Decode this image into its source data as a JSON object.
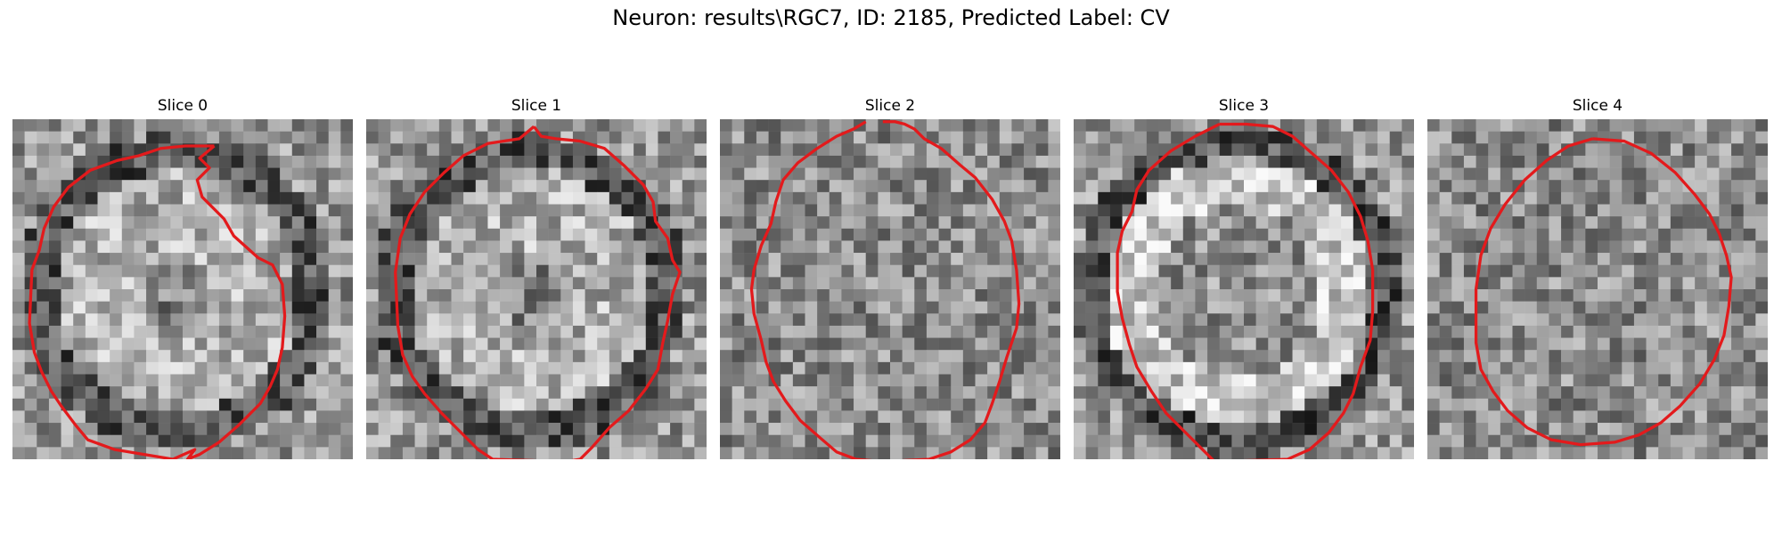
{
  "figure": {
    "title": "Neuron: results\\RGC7, ID: 2185, Predicted Label: CV",
    "outline_color": "#e31a1c",
    "colormap": "gray",
    "grid_size": 28,
    "panels": [
      {
        "title": "Slice 0",
        "pattern": "ring",
        "seed": 11,
        "outline": [
          [
            16.6,
            2.2
          ],
          [
            15.4,
            3.2
          ],
          [
            16.2,
            4.0
          ],
          [
            15.2,
            5.0
          ],
          [
            15.6,
            6.4
          ],
          [
            17.4,
            8.2
          ],
          [
            18.2,
            9.6
          ],
          [
            20.2,
            11.4
          ],
          [
            21.4,
            12.0
          ],
          [
            22.2,
            13.6
          ],
          [
            22.4,
            16.2
          ],
          [
            22.2,
            18.8
          ],
          [
            21.8,
            20.6
          ],
          [
            21.2,
            22.0
          ],
          [
            20.4,
            23.4
          ],
          [
            18.6,
            25.2
          ],
          [
            17.0,
            26.6
          ],
          [
            15.4,
            27.6
          ],
          [
            14.4,
            28.0
          ],
          [
            15.0,
            27.2
          ],
          [
            13.2,
            28.0
          ],
          [
            8.4,
            27.2
          ],
          [
            6.2,
            26.4
          ],
          [
            5.2,
            25.2
          ],
          [
            4.0,
            23.6
          ],
          [
            3.2,
            22.4
          ],
          [
            2.4,
            20.8
          ],
          [
            1.8,
            19.2
          ],
          [
            1.4,
            16.8
          ],
          [
            1.6,
            12.4
          ],
          [
            2.2,
            10.8
          ],
          [
            2.6,
            9.0
          ],
          [
            3.4,
            7.2
          ],
          [
            4.6,
            5.6
          ],
          [
            6.4,
            4.2
          ],
          [
            8.6,
            3.4
          ],
          [
            10.4,
            3.0
          ],
          [
            12.2,
            2.4
          ],
          [
            14.2,
            2.2
          ],
          [
            16.6,
            2.2
          ]
        ]
      },
      {
        "title": "Slice 1",
        "pattern": "ring",
        "seed": 23,
        "outline": [
          [
            13.8,
            0.6
          ],
          [
            14.4,
            1.4
          ],
          [
            15.6,
            1.6
          ],
          [
            17.6,
            1.8
          ],
          [
            19.6,
            2.4
          ],
          [
            21.2,
            3.8
          ],
          [
            22.8,
            5.4
          ],
          [
            23.6,
            6.8
          ],
          [
            23.8,
            8.4
          ],
          [
            24.8,
            9.8
          ],
          [
            25.2,
            11.6
          ],
          [
            25.8,
            12.6
          ],
          [
            25.2,
            14.4
          ],
          [
            24.8,
            16.6
          ],
          [
            24.4,
            18.4
          ],
          [
            24.0,
            20.6
          ],
          [
            23.0,
            22.2
          ],
          [
            21.6,
            24.0
          ],
          [
            20.0,
            25.4
          ],
          [
            18.6,
            27.0
          ],
          [
            17.6,
            28.0
          ],
          [
            16.4,
            28.2
          ],
          [
            10.4,
            28.0
          ],
          [
            9.2,
            27.2
          ],
          [
            7.6,
            25.6
          ],
          [
            6.2,
            24.2
          ],
          [
            4.8,
            22.6
          ],
          [
            3.8,
            21.2
          ],
          [
            3.0,
            19.4
          ],
          [
            2.6,
            17.0
          ],
          [
            2.4,
            12.6
          ],
          [
            2.8,
            9.8
          ],
          [
            3.6,
            7.8
          ],
          [
            4.8,
            6.0
          ],
          [
            6.4,
            4.4
          ],
          [
            8.0,
            3.0
          ],
          [
            10.0,
            2.0
          ],
          [
            12.6,
            1.6
          ],
          [
            13.8,
            0.6
          ]
        ]
      },
      {
        "title": "Slice 2",
        "pattern": "noise",
        "seed": 37,
        "outline": [
          [
            12.0,
            0.2
          ],
          [
            11.0,
            0.8
          ],
          [
            9.6,
            1.4
          ],
          [
            8.0,
            2.4
          ],
          [
            6.4,
            3.6
          ],
          [
            5.2,
            5.0
          ],
          [
            4.6,
            6.8
          ],
          [
            4.2,
            8.6
          ],
          [
            3.4,
            10.4
          ],
          [
            2.8,
            12.4
          ],
          [
            2.6,
            14.0
          ],
          [
            2.8,
            16.0
          ],
          [
            3.4,
            18.2
          ],
          [
            3.8,
            20.0
          ],
          [
            4.4,
            21.6
          ],
          [
            5.4,
            23.2
          ],
          [
            6.6,
            24.8
          ],
          [
            8.2,
            26.2
          ],
          [
            9.6,
            27.4
          ],
          [
            11.2,
            28.0
          ],
          [
            13.4,
            28.2
          ],
          [
            17.2,
            28.0
          ],
          [
            19.0,
            27.4
          ],
          [
            20.6,
            26.4
          ],
          [
            21.8,
            25.0
          ],
          [
            22.4,
            23.4
          ],
          [
            23.0,
            21.6
          ],
          [
            23.6,
            19.6
          ],
          [
            24.4,
            17.2
          ],
          [
            24.6,
            15.2
          ],
          [
            24.4,
            12.4
          ],
          [
            24.0,
            10.0
          ],
          [
            23.4,
            8.4
          ],
          [
            22.4,
            6.6
          ],
          [
            21.0,
            4.8
          ],
          [
            19.8,
            3.8
          ],
          [
            18.2,
            2.4
          ],
          [
            16.8,
            1.6
          ],
          [
            16.0,
            0.8
          ],
          [
            15.2,
            0.4
          ],
          [
            14.4,
            0.2
          ],
          [
            13.4,
            0.2
          ]
        ]
      },
      {
        "title": "Slice 3",
        "pattern": "bright",
        "seed": 53,
        "outline": [
          [
            12.0,
            0.4
          ],
          [
            10.0,
            1.4
          ],
          [
            8.0,
            2.6
          ],
          [
            6.2,
            4.2
          ],
          [
            5.2,
            5.8
          ],
          [
            4.8,
            7.6
          ],
          [
            4.0,
            9.2
          ],
          [
            3.6,
            11.0
          ],
          [
            3.6,
            14.2
          ],
          [
            4.0,
            16.4
          ],
          [
            4.6,
            18.6
          ],
          [
            5.2,
            20.4
          ],
          [
            6.4,
            22.4
          ],
          [
            7.6,
            24.2
          ],
          [
            9.0,
            25.6
          ],
          [
            10.6,
            27.2
          ],
          [
            11.6,
            28.2
          ],
          [
            17.6,
            28.0
          ],
          [
            19.4,
            27.2
          ],
          [
            21.0,
            25.8
          ],
          [
            22.2,
            24.2
          ],
          [
            23.0,
            22.6
          ],
          [
            23.6,
            20.4
          ],
          [
            24.4,
            18.2
          ],
          [
            24.6,
            15.8
          ],
          [
            24.6,
            12.4
          ],
          [
            24.2,
            10.0
          ],
          [
            23.6,
            8.0
          ],
          [
            22.6,
            6.0
          ],
          [
            21.2,
            4.2
          ],
          [
            19.6,
            2.8
          ],
          [
            18.0,
            1.4
          ],
          [
            16.4,
            0.6
          ],
          [
            14.2,
            0.4
          ],
          [
            12.0,
            0.4
          ]
        ]
      },
      {
        "title": "Slice 4",
        "pattern": "noise",
        "seed": 71,
        "outline": [
          [
            13.6,
            1.6
          ],
          [
            16.2,
            1.8
          ],
          [
            18.4,
            2.8
          ],
          [
            20.4,
            4.4
          ],
          [
            22.0,
            6.2
          ],
          [
            23.2,
            7.8
          ],
          [
            24.0,
            9.4
          ],
          [
            24.6,
            11.2
          ],
          [
            25.0,
            13.0
          ],
          [
            24.8,
            15.4
          ],
          [
            24.4,
            17.8
          ],
          [
            23.6,
            19.8
          ],
          [
            22.4,
            21.8
          ],
          [
            20.8,
            23.6
          ],
          [
            19.2,
            25.0
          ],
          [
            17.4,
            26.0
          ],
          [
            15.4,
            26.6
          ],
          [
            12.6,
            26.8
          ],
          [
            10.2,
            26.4
          ],
          [
            8.2,
            25.4
          ],
          [
            6.6,
            24.0
          ],
          [
            5.4,
            22.4
          ],
          [
            4.4,
            20.6
          ],
          [
            4.0,
            18.4
          ],
          [
            4.0,
            14.0
          ],
          [
            4.4,
            11.2
          ],
          [
            5.2,
            9.0
          ],
          [
            6.4,
            7.0
          ],
          [
            8.0,
            5.0
          ],
          [
            9.8,
            3.4
          ],
          [
            11.6,
            2.2
          ],
          [
            13.6,
            1.6
          ]
        ]
      }
    ]
  }
}
